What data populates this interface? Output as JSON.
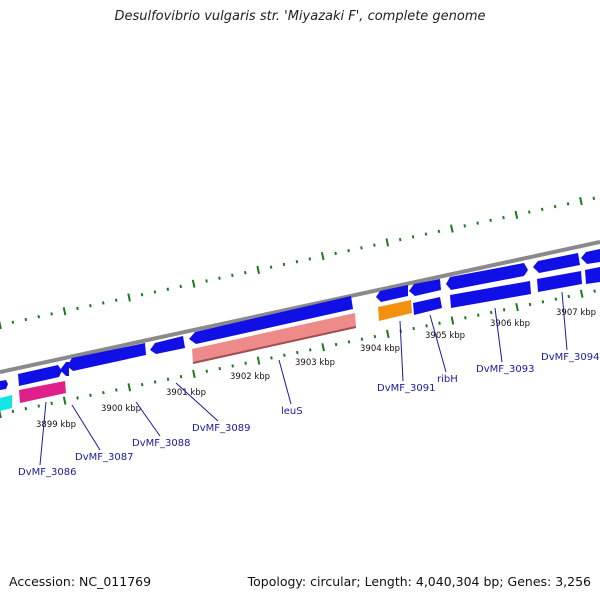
{
  "title": "Desulfovibrio vulgaris str. 'Miyazaki F', complete genome",
  "footer": {
    "accession": "Accession: NC_011769",
    "summary": "Topology: circular; Length: 4,040,304 bp; Genes: 3,256"
  },
  "colors": {
    "backbone": "#8a8a8a",
    "gene_forward": "#1010e6",
    "gene_highlight_pink": "#ee8a8a",
    "gene_magenta": "#e0208a",
    "gene_orange": "#f29010",
    "gene_cyan": "#10e6e6",
    "tick": "#1e7a1e",
    "label": "#1a1aa0"
  },
  "kbp_ticks": [
    "3899 kbp",
    "3900 kbp",
    "3901 kbp",
    "3902 kbp",
    "3903 kbp",
    "3904 kbp",
    "3905 kbp",
    "3906 kbp",
    "3907 kbp"
  ],
  "gene_labels": [
    "DvMF_3086",
    "DvMF_3087",
    "DvMF_3088",
    "DvMF_3089",
    "leuS",
    "DvMF_3091",
    "ribH",
    "DvMF_3093",
    "DvMF_3094"
  ]
}
